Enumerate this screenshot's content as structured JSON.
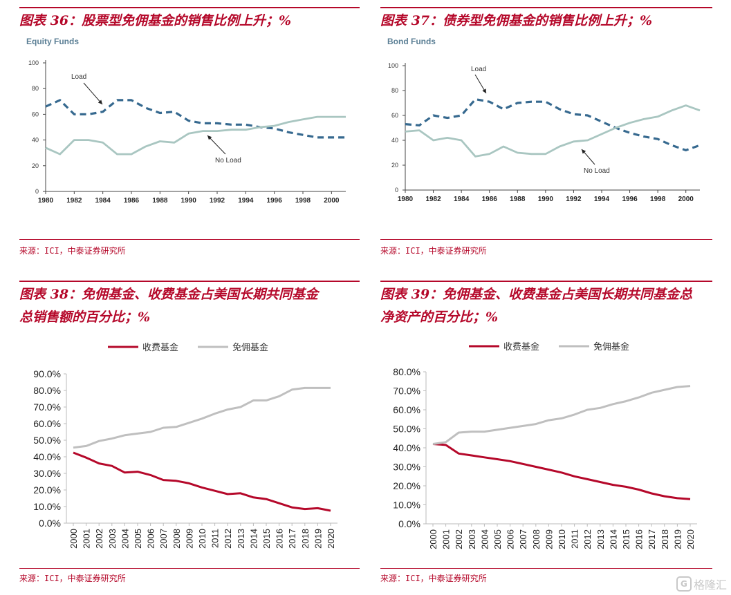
{
  "panels": [
    {
      "title": "图表 36：股票型免佣基金的销售比例上升；%",
      "source": "来源：ICI，中泰证券研究所"
    },
    {
      "title": "图表 37：债券型免佣基金的销售比例上升；%",
      "source": "来源：ICI，中泰证券研究所"
    },
    {
      "title_line1": "图表 38：免佣基金、收费基金占美国长期共同基金",
      "title_line2": "总销售额的百分比；%",
      "source": "来源：ICI，中泰证券研究所"
    },
    {
      "title_line1": "图表 39：免佣基金、收费基金占美国长期共同基金总",
      "title_line2": "净资产的百分比；%",
      "source": "来源：ICI，中泰证券研究所"
    }
  ],
  "watermark": "格隆汇",
  "chart_data": [
    {
      "type": "line",
      "title": "Equity Funds",
      "x": [
        1980,
        1981,
        1982,
        1983,
        1984,
        1985,
        1986,
        1987,
        1988,
        1989,
        1990,
        1991,
        1992,
        1993,
        1994,
        1995,
        1996,
        1997,
        1998,
        1999,
        2000,
        2001
      ],
      "series": [
        {
          "name": "Load",
          "style": "dashed",
          "values": [
            66,
            71,
            60,
            60,
            62,
            71,
            71,
            65,
            61,
            62,
            55,
            53,
            53,
            52,
            52,
            50,
            49,
            46,
            44,
            42,
            42,
            42
          ]
        },
        {
          "name": "No Load",
          "style": "solid",
          "values": [
            34,
            29,
            40,
            40,
            38,
            29,
            29,
            35,
            39,
            38,
            45,
            47,
            47,
            48,
            48,
            50,
            51,
            54,
            56,
            58,
            58,
            58
          ]
        }
      ],
      "xticks": [
        "1980",
        "1982",
        "1984",
        "1986",
        "1988",
        "1990",
        "1992",
        "1994",
        "1996",
        "1998",
        "2000"
      ],
      "yticks": [
        "0",
        "20",
        "40",
        "60",
        "80",
        "100"
      ],
      "ylim": [
        0,
        100
      ],
      "annotations": [
        "Load",
        "No Load"
      ]
    },
    {
      "type": "line",
      "title": "Bond Funds",
      "x": [
        1980,
        1981,
        1982,
        1983,
        1984,
        1985,
        1986,
        1987,
        1988,
        1989,
        1990,
        1991,
        1992,
        1993,
        1994,
        1995,
        1996,
        1997,
        1998,
        1999,
        2000,
        2001
      ],
      "series": [
        {
          "name": "Load",
          "style": "dashed",
          "values": [
            53,
            52,
            60,
            58,
            60,
            73,
            71,
            65,
            70,
            71,
            71,
            65,
            61,
            60,
            55,
            50,
            46,
            43,
            41,
            36,
            32,
            36
          ]
        },
        {
          "name": "No Load",
          "style": "solid",
          "values": [
            47,
            48,
            40,
            42,
            40,
            27,
            29,
            35,
            30,
            29,
            29,
            35,
            39,
            40,
            45,
            50,
            54,
            57,
            59,
            64,
            68,
            64
          ]
        }
      ],
      "xticks": [
        "1980",
        "1982",
        "1984",
        "1986",
        "1988",
        "1990",
        "1992",
        "1994",
        "1996",
        "1998",
        "2000"
      ],
      "yticks": [
        "0",
        "20",
        "40",
        "60",
        "80",
        "100"
      ],
      "ylim": [
        0,
        100
      ],
      "annotations": [
        "Load",
        "No Load"
      ]
    },
    {
      "type": "line",
      "title": "",
      "x": [
        "2000",
        "2001",
        "2002",
        "2003",
        "2004",
        "2005",
        "2006",
        "2007",
        "2008",
        "2009",
        "2010",
        "2011",
        "2012",
        "2013",
        "2014",
        "2015",
        "2016",
        "2017",
        "2018",
        "2019",
        "2020"
      ],
      "series": [
        {
          "name": "收费基金",
          "color": "#b5082a",
          "values": [
            42.5,
            39.5,
            36,
            34.5,
            30.5,
            31,
            29,
            26,
            25.5,
            24,
            21.5,
            19.5,
            17.5,
            18,
            15.5,
            14.5,
            12,
            9.5,
            8.5,
            9,
            7.5
          ]
        },
        {
          "name": "免佣基金",
          "color": "#bfbfbf",
          "values": [
            45.5,
            46.5,
            49.5,
            51,
            53,
            54,
            55,
            57.5,
            58,
            60.5,
            63,
            66,
            68.5,
            70,
            74,
            74,
            76.5,
            80.5,
            81.5,
            81.5,
            81.5
          ]
        }
      ],
      "yticks": [
        "0.0%",
        "10.0%",
        "20.0%",
        "30.0%",
        "40.0%",
        "50.0%",
        "60.0%",
        "70.0%",
        "80.0%",
        "90.0%"
      ],
      "ylim": [
        0,
        90
      ],
      "legend": "top-left"
    },
    {
      "type": "line",
      "title": "",
      "x": [
        "2000",
        "2001",
        "2002",
        "2003",
        "2004",
        "2005",
        "2006",
        "2007",
        "2008",
        "2009",
        "2010",
        "2011",
        "2012",
        "2013",
        "2014",
        "2015",
        "2016",
        "2017",
        "2018",
        "2019",
        "2020"
      ],
      "series": [
        {
          "name": "收费基金",
          "color": "#b5082a",
          "values": [
            42,
            41.5,
            37,
            36,
            35,
            34,
            33,
            31.5,
            30,
            28.5,
            27,
            25,
            23.5,
            22,
            20.5,
            19.5,
            18,
            16,
            14.5,
            13.5,
            13
          ]
        },
        {
          "name": "免佣基金",
          "color": "#bfbfbf",
          "values": [
            42,
            43,
            48,
            48.5,
            48.5,
            49.5,
            50.5,
            51.5,
            52.5,
            54.5,
            55.5,
            57.5,
            60,
            61,
            63,
            64.5,
            66.5,
            69,
            70.5,
            72,
            72.5
          ]
        }
      ],
      "yticks": [
        "0.0%",
        "10.0%",
        "20.0%",
        "30.0%",
        "40.0%",
        "50.0%",
        "60.0%",
        "70.0%",
        "80.0%"
      ],
      "ylim": [
        0,
        80
      ],
      "legend": "top-center"
    }
  ]
}
